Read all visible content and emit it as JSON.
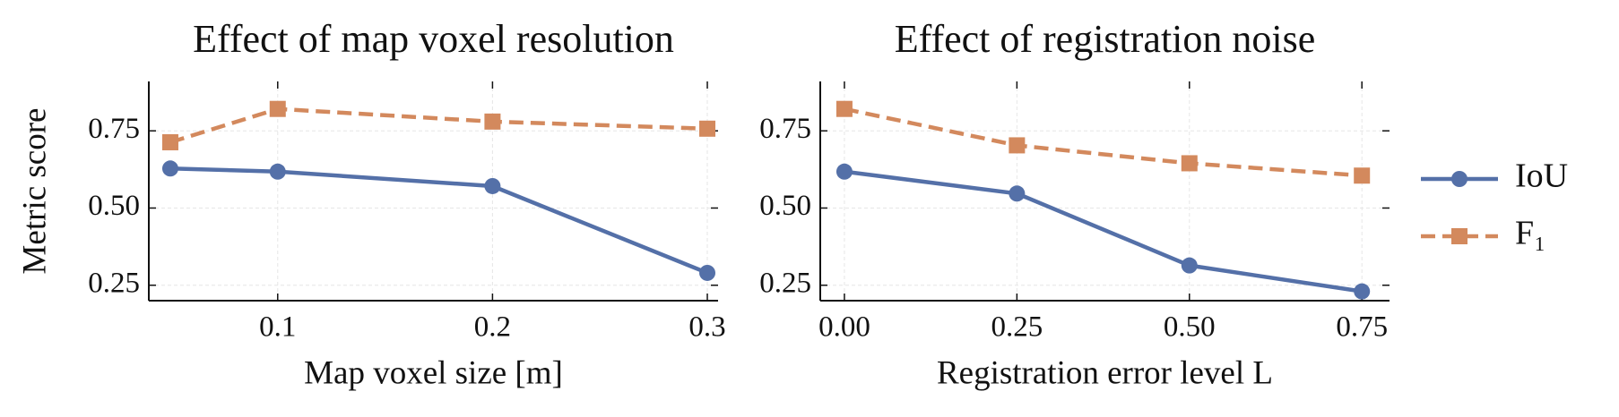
{
  "chart_data": [
    {
      "type": "line",
      "title": "Effect of map voxel resolution",
      "xlabel": "Map voxel size [m]",
      "ylabel": "Metric score",
      "x": [
        0.05,
        0.1,
        0.2,
        0.3
      ],
      "series": [
        {
          "name": "IoU",
          "color": "#5470a8",
          "marker": "circle",
          "linestyle": "solid",
          "values": [
            0.628,
            0.618,
            0.571,
            0.29
          ]
        },
        {
          "name": "F₁",
          "color": "#d3895d",
          "marker": "square",
          "linestyle": "dashed",
          "values": [
            0.713,
            0.821,
            0.78,
            0.757
          ]
        }
      ],
      "xlim": [
        0.04,
        0.305
      ],
      "xticks": [
        0.1,
        0.2,
        0.3
      ],
      "ylim": [
        0.2,
        0.91
      ],
      "yticks": [
        0.25,
        {
          "value": 0.5,
          "label": "0.50"
        },
        0.75
      ],
      "grid": true
    },
    {
      "type": "line",
      "title": "Effect of registration noise",
      "xlabel": "Registration error level L",
      "x": [
        0,
        0.25,
        0.5,
        0.75
      ],
      "series": [
        {
          "name": "IoU",
          "color": "#5470a8",
          "marker": "circle",
          "linestyle": "solid",
          "values": [
            0.618,
            0.547,
            0.314,
            0.23
          ]
        },
        {
          "name": "F₁",
          "color": "#d3895d",
          "marker": "square",
          "linestyle": "dashed",
          "values": [
            0.821,
            0.703,
            0.645,
            0.605
          ]
        }
      ],
      "xlim": [
        -0.035,
        0.79
      ],
      "xticks": [
        {
          "value": 0,
          "label": "0.00"
        },
        0.25,
        {
          "value": 0.5,
          "label": "0.50"
        },
        0.75
      ],
      "ylim": [
        0.2,
        0.91
      ],
      "yticks": [
        0.25,
        {
          "value": 0.5,
          "label": "0.50"
        },
        0.75
      ],
      "grid": true,
      "legend": "outside right"
    }
  ]
}
